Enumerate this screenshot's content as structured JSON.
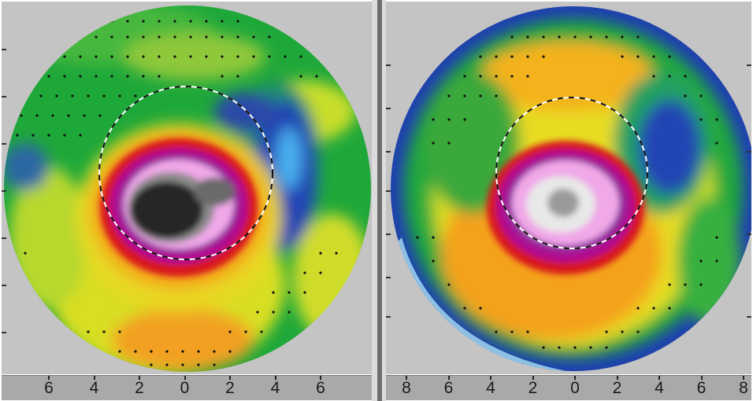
{
  "maps": [
    {
      "name": "left-map",
      "x_ticks": [
        "6",
        "4",
        "2",
        "0",
        "2",
        "4",
        "6"
      ]
    },
    {
      "name": "right-map",
      "x_ticks": [
        "8",
        "6",
        "4",
        "2",
        "0",
        "2",
        "4",
        "6",
        "8"
      ]
    }
  ],
  "colors": {
    "background": "#c4c4c4",
    "green": "#1fa83a",
    "yellow": "#e8e21a",
    "orange": "#f4a21e",
    "red": "#d8181e",
    "magenta": "#b01090",
    "purple": "#8a2a9c",
    "pink": "#f0a8e8",
    "dark": "#262626",
    "blue": "#2040b0",
    "light_blue": "#40a8f0"
  }
}
